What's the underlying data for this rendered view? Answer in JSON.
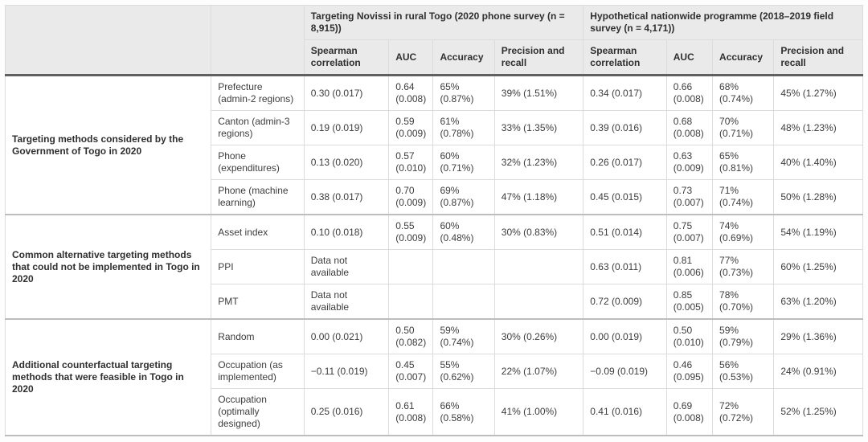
{
  "table": {
    "col_groups": [
      {
        "title": "Targeting Novissi in rural Togo (2020 phone survey (n = 8,915))"
      },
      {
        "title": "Hypothetical nationwide programme (2018–2019 field survey (n = 4,171))"
      }
    ],
    "metric_headers": [
      "Spearman correlation",
      "AUC",
      "Accuracy",
      "Precision and recall"
    ],
    "row_groups": [
      {
        "label": "Targeting methods considered by the Government of Togo in 2020",
        "rows": [
          {
            "label": "Prefecture (admin-2 regions)",
            "values": [
              "0.30 (0.017)",
              "0.64 (0.008)",
              "65% (0.87%)",
              "39% (1.51%)",
              "0.34 (0.017)",
              "0.66 (0.008)",
              "68% (0.74%)",
              "45% (1.27%)"
            ]
          },
          {
            "label": "Canton (admin-3 regions)",
            "values": [
              "0.19 (0.019)",
              "0.59 (0.009)",
              "61% (0.78%)",
              "33% (1.35%)",
              "0.39 (0.016)",
              "0.68 (0.008)",
              "70% (0.71%)",
              "48% (1.23%)"
            ]
          },
          {
            "label": "Phone (expenditures)",
            "values": [
              "0.13 (0.020)",
              "0.57 (0.010)",
              "60% (0.71%)",
              "32% (1.23%)",
              "0.26 (0.017)",
              "0.63 (0.009)",
              "65% (0.81%)",
              "40% (1.40%)"
            ]
          },
          {
            "label": "Phone (machine learning)",
            "values": [
              "0.38 (0.017)",
              "0.70 (0.009)",
              "69% (0.87%)",
              "47% (1.18%)",
              "0.45 (0.015)",
              "0.73 (0.007)",
              "71% (0.74%)",
              "50% (1.28%)"
            ]
          }
        ]
      },
      {
        "label": "Common alternative targeting methods that could not be implemented in Togo in 2020",
        "rows": [
          {
            "label": "Asset index",
            "values": [
              "0.10 (0.018)",
              "0.55 (0.009)",
              "60% (0.48%)",
              "30% (0.83%)",
              "0.51 (0.014)",
              "0.75 (0.007)",
              "74% (0.69%)",
              "54% (1.19%)"
            ]
          },
          {
            "label": "PPI",
            "values": [
              "Data not available",
              "",
              "",
              "",
              "0.63 (0.011)",
              "0.81 (0.006)",
              "77% (0.73%)",
              "60% (1.25%)"
            ]
          },
          {
            "label": "PMT",
            "values": [
              "Data not available",
              "",
              "",
              "",
              "0.72 (0.009)",
              "0.85 (0.005)",
              "78% (0.70%)",
              "63% (1.20%)"
            ]
          }
        ]
      },
      {
        "label": "Additional counterfactual targeting methods that were feasible in Togo in 2020",
        "rows": [
          {
            "label": "Random",
            "values": [
              "0.00 (0.021)",
              "0.50 (0.082)",
              "59% (0.74%)",
              "30% (0.26%)",
              "0.00 (0.019)",
              "0.50 (0.010)",
              "59% (0.79%)",
              "29% (1.36%)"
            ]
          },
          {
            "label": "Occupation (as implemented)",
            "values": [
              "−0.11 (0.019)",
              "0.45 (0.007)",
              "55% (0.62%)",
              "22% (1.07%)",
              "−0.09 (0.019)",
              "0.46 (0.095)",
              "56% (0.53%)",
              "24% (0.91%)"
            ]
          },
          {
            "label": "Occupation (optimally designed)",
            "values": [
              "0.25 (0.016)",
              "0.61 (0.008)",
              "66% (0.58%)",
              "41% (1.00%)",
              "0.41 (0.016)",
              "0.69 (0.008)",
              "72% (0.72%)",
              "52% (1.25%)"
            ]
          }
        ]
      }
    ]
  }
}
